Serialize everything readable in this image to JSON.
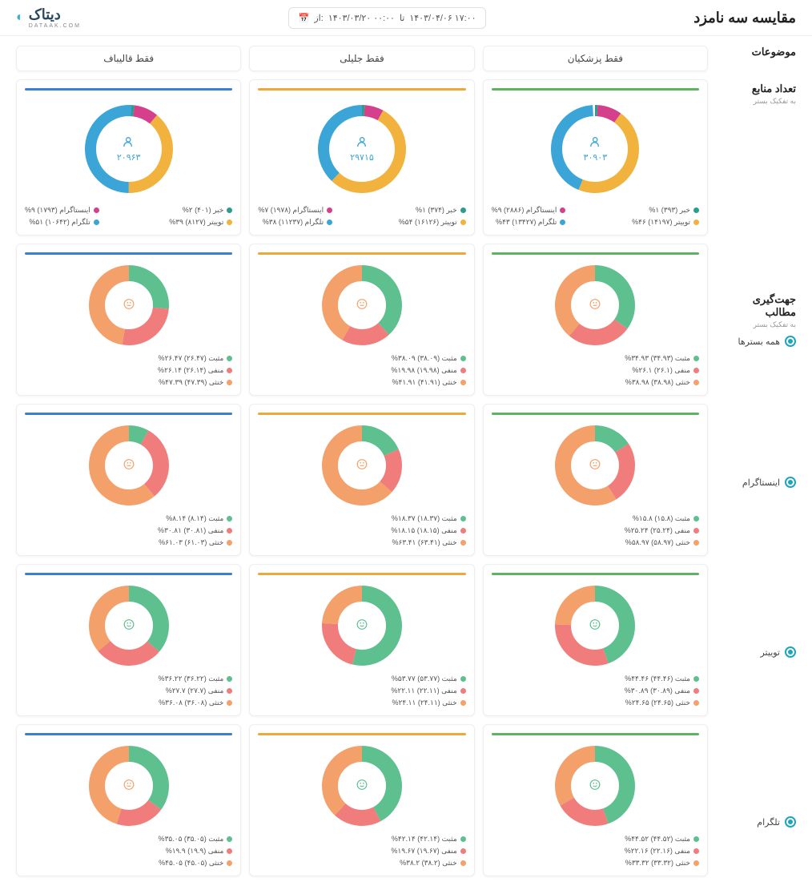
{
  "page_title": "مقایسه سه نامزد",
  "logo": {
    "text": "دیتاک",
    "sub": "DATAAK.COM"
  },
  "date_range": {
    "from_label": "از:",
    "from": "۱۴۰۳/۰۳/۲۰ ۰۰:۰۰",
    "to_label": "تا",
    "to": "۱۴۰۳/۰۴/۰۶ ۱۷:۰۰"
  },
  "side": {
    "topics": "موضوعات",
    "sources_title": "تعداد منابع",
    "sources_sub": "به تفکیک بستر",
    "sentiment_title": "جهت‌گیری مطالب",
    "sentiment_sub": "به تفکیک بستر",
    "radios": [
      {
        "label": "همه بسترها",
        "checked": true
      },
      {
        "label": "اینستاگرام",
        "checked": true
      },
      {
        "label": "توییتر",
        "checked": true
      },
      {
        "label": "تلگرام",
        "checked": true
      }
    ]
  },
  "columns": [
    {
      "label": "فقط پزشکیان",
      "accent": "#5eb35e"
    },
    {
      "label": "فقط جلیلی",
      "accent": "#f0a73a"
    },
    {
      "label": "فقط قالیباف",
      "accent": "#3a7fd6"
    }
  ],
  "colors": {
    "pos": "#5ec08f",
    "neg": "#f17c7c",
    "neu": "#f3a06a",
    "news": "#2a9d8f",
    "insta": "#d5408c",
    "twitter": "#f2b23e",
    "telegram": "#3aa5d6",
    "ring_bg": "#e8e8e8"
  },
  "sources": [
    {
      "total": "۳۰۹۰۳",
      "items": [
        {
          "name": "خبر",
          "count": "۳۹۳",
          "pct": 1,
          "pct_label": "۱%",
          "color": "#2a9d8f"
        },
        {
          "name": "اینستاگرام",
          "count": "۲۸۸۶",
          "pct": 9,
          "pct_label": "۹%",
          "color": "#d5408c"
        },
        {
          "name": "توییتر",
          "count": "۱۴۱۹۷",
          "pct": 46,
          "pct_label": "۴۶%",
          "color": "#f2b23e"
        },
        {
          "name": "تلگرام",
          "count": "۱۳۴۲۷",
          "pct": 43,
          "pct_label": "۴۳%",
          "color": "#3aa5d6"
        }
      ]
    },
    {
      "total": "۲۹۷۱۵",
      "items": [
        {
          "name": "خبر",
          "count": "۳۷۴",
          "pct": 1,
          "pct_label": "۱%",
          "color": "#2a9d8f"
        },
        {
          "name": "اینستاگرام",
          "count": "۱۹۷۸",
          "pct": 7,
          "pct_label": "۷%",
          "color": "#d5408c"
        },
        {
          "name": "توییتر",
          "count": "۱۶۱۲۶",
          "pct": 54,
          "pct_label": "۵۴%",
          "color": "#f2b23e"
        },
        {
          "name": "تلگرام",
          "count": "۱۱۲۳۷",
          "pct": 38,
          "pct_label": "۳۸%",
          "color": "#3aa5d6"
        }
      ]
    },
    {
      "total": "۲۰۹۶۳",
      "items": [
        {
          "name": "خبر",
          "count": "۴۰۱",
          "pct": 2,
          "pct_label": "۲%",
          "color": "#2a9d8f"
        },
        {
          "name": "اینستاگرام",
          "count": "۱۷۹۳",
          "pct": 9,
          "pct_label": "۹%",
          "color": "#d5408c"
        },
        {
          "name": "توییتر",
          "count": "۸۱۲۷",
          "pct": 39,
          "pct_label": "۳۹%",
          "color": "#f2b23e"
        },
        {
          "name": "تلگرام",
          "count": "۱۰۶۴۲",
          "pct": 51,
          "pct_label": "۵۱%",
          "color": "#3aa5d6"
        }
      ]
    }
  ],
  "sentiment_rows": [
    {
      "key": "all",
      "cells": [
        {
          "face": "neutral",
          "face_color": "#f3a06a",
          "pos": 34.93,
          "neg": 26.1,
          "neu": 38.98,
          "labels": [
            "مثبت (۳۴.۹۳) ۳۴.۹۳%",
            "منفی (۲۶.۱) ۲۶.۱%",
            "خنثی (۳۸.۹۸) ۳۸.۹۸%"
          ]
        },
        {
          "face": "neutral",
          "face_color": "#f3a06a",
          "pos": 38.09,
          "neg": 19.98,
          "neu": 41.91,
          "labels": [
            "مثبت (۳۸.۰۹) ۳۸.۰۹%",
            "منفی (۱۹.۹۸) ۱۹.۹۸%",
            "خنثی (۴۱.۹۱) ۴۱.۹۱%"
          ]
        },
        {
          "face": "neutral",
          "face_color": "#f3a06a",
          "pos": 26.47,
          "neg": 26.14,
          "neu": 47.39,
          "labels": [
            "مثبت (۲۶.۴۷) ۲۶.۴۷%",
            "منفی (۲۶.۱۴) ۲۶.۱۴%",
            "خنثی (۴۷.۳۹) ۴۷.۳۹%"
          ]
        }
      ]
    },
    {
      "key": "instagram",
      "cells": [
        {
          "face": "neutral",
          "face_color": "#f3a06a",
          "pos": 15.8,
          "neg": 25.24,
          "neu": 58.97,
          "labels": [
            "مثبت (۱۵.۸) ۱۵.۸%",
            "منفی (۲۵.۲۴) ۲۵.۲۴%",
            "خنثی (۵۸.۹۷) ۵۸.۹۷%"
          ]
        },
        {
          "face": "neutral",
          "face_color": "#f3a06a",
          "pos": 18.37,
          "neg": 18.15,
          "neu": 63.41,
          "labels": [
            "مثبت (۱۸.۳۷) ۱۸.۳۷%",
            "منفی (۱۸.۱۵) ۱۸.۱۵%",
            "خنثی (۶۳.۴۱) ۶۳.۴۱%"
          ]
        },
        {
          "face": "neutral",
          "face_color": "#f3a06a",
          "pos": 8.14,
          "neg": 30.81,
          "neu": 61.03,
          "labels": [
            "مثبت (۸.۱۴) ۸.۱۴%",
            "منفی (۳۰.۸۱) ۳۰.۸۱%",
            "خنثی (۶۱.۰۳) ۶۱.۰۳%"
          ]
        }
      ]
    },
    {
      "key": "twitter",
      "cells": [
        {
          "face": "happy",
          "face_color": "#5ec08f",
          "pos": 44.46,
          "neg": 30.89,
          "neu": 24.65,
          "labels": [
            "مثبت (۴۴.۴۶) ۴۴.۴۶%",
            "منفی (۳۰.۸۹) ۳۰.۸۹%",
            "خنثی (۲۴.۶۵) ۲۴.۶۵%"
          ]
        },
        {
          "face": "happy",
          "face_color": "#5ec08f",
          "pos": 53.77,
          "neg": 22.11,
          "neu": 24.11,
          "labels": [
            "مثبت (۵۳.۷۷) ۵۳.۷۷%",
            "منفی (۲۲.۱۱) ۲۲.۱۱%",
            "خنثی (۲۴.۱۱) ۲۴.۱۱%"
          ]
        },
        {
          "face": "happy",
          "face_color": "#5ec08f",
          "pos": 36.22,
          "neg": 27.7,
          "neu": 36.08,
          "labels": [
            "مثبت (۳۶.۲۲) ۳۶.۲۲%",
            "منفی (۲۷.۷) ۲۷.۷%",
            "خنثی (۳۶.۰۸) ۳۶.۰۸%"
          ]
        }
      ]
    },
    {
      "key": "telegram",
      "cells": [
        {
          "face": "happy",
          "face_color": "#5ec08f",
          "pos": 44.52,
          "neg": 22.16,
          "neu": 33.32,
          "labels": [
            "مثبت (۴۴.۵۲) ۴۴.۵۲%",
            "منفی (۲۲.۱۶) ۲۲.۱۶%",
            "خنثی (۳۳.۳۲) ۳۳.۳۲%"
          ]
        },
        {
          "face": "happy",
          "face_color": "#5ec08f",
          "pos": 42.14,
          "neg": 19.67,
          "neu": 38.2,
          "labels": [
            "مثبت (۴۲.۱۴) ۴۲.۱۴%",
            "منفی (۱۹.۶۷) ۱۹.۶۷%",
            "خنثی (۳۸.۲) ۳۸.۲%"
          ]
        },
        {
          "face": "neutral",
          "face_color": "#f3a06a",
          "pos": 35.05,
          "neg": 19.9,
          "neu": 45.05,
          "labels": [
            "مثبت (۳۵.۰۵) ۳۵.۰۵%",
            "منفی (۱۹.۹) ۱۹.۹%",
            "خنثی (۴۵.۰۵) ۴۵.۰۵%"
          ]
        }
      ]
    }
  ]
}
